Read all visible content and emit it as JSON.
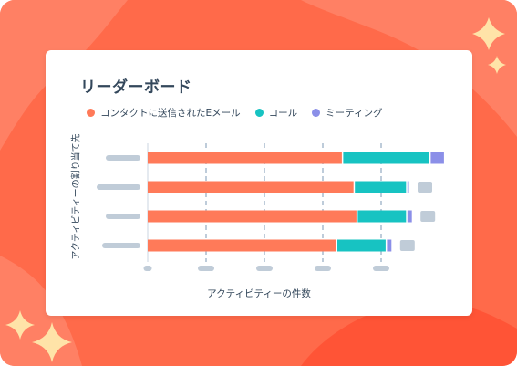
{
  "colors": {
    "background": "#ff6a4a",
    "background_wave": "#ff8064",
    "sparkle": "#ffe3a8",
    "placeholder": "#c0ccd8",
    "axis": "#cbd6e2",
    "grid": "#7c98b6"
  },
  "chart_data": {
    "type": "bar",
    "orientation": "horizontal",
    "stacked": true,
    "title": "リーダーボード",
    "xlabel": "アクティビティーの件数",
    "ylabel": "アクティビティーの割り当て先",
    "categories": [
      "",
      "",
      "",
      ""
    ],
    "xlim": [
      0,
      100
    ],
    "series": [
      {
        "name": "コンタクトに送信されたEメール",
        "color": "#ff7a59",
        "values": [
          67,
          71,
          72,
          65
        ]
      },
      {
        "name": "コール",
        "color": "#17c3c2",
        "values": [
          30,
          18,
          17,
          17
        ]
      },
      {
        "name": "ミーティング",
        "color": "#8b8fe8",
        "values": [
          5,
          1,
          2,
          2
        ]
      }
    ],
    "grid": true,
    "legend_position": "top-left"
  }
}
